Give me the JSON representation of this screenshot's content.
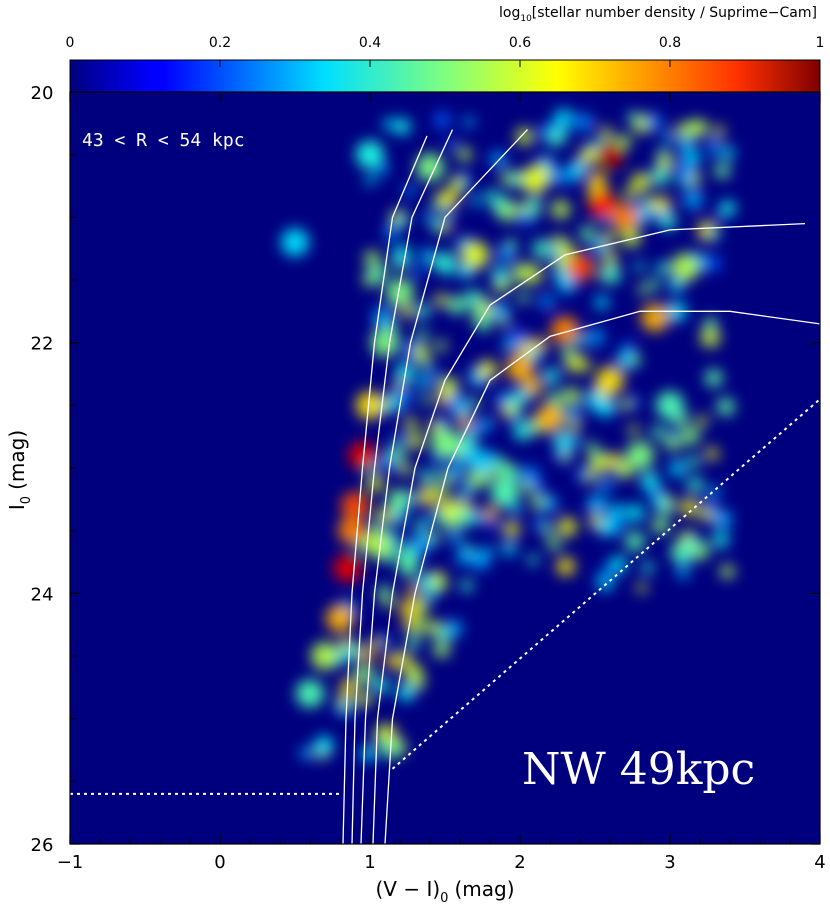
{
  "chart_data": {
    "type": "heatmap",
    "title": "",
    "xlabel": "(V − I)",
    "xlabel_sub": "0",
    "xlabel_unit": "(mag)",
    "ylabel": "I",
    "ylabel_sub": "0",
    "ylabel_unit": "(mag)",
    "xlim": [
      -1,
      4
    ],
    "ylim": [
      26,
      20
    ],
    "x_ticks": [
      -1,
      0,
      1,
      2,
      3,
      4
    ],
    "x_tick_labels": [
      "−1",
      "0",
      "1",
      "2",
      "3",
      "4"
    ],
    "y_ticks": [
      20,
      22,
      24,
      26
    ],
    "y_tick_labels": [
      "20",
      "22",
      "24",
      "26"
    ],
    "colorbar": {
      "label_prefix": "log",
      "label_sub": "10",
      "label_suffix": "[stellar number density / Suprime−Cam]",
      "range": [
        0,
        1
      ],
      "ticks": [
        0,
        0.2,
        0.4,
        0.6,
        0.8,
        1
      ],
      "tick_labels": [
        "0",
        "0.2",
        "0.4",
        "0.6",
        "0.8",
        "1"
      ],
      "colormap": "jet"
    },
    "annotations": {
      "radius_range": "43 < R < 54 kpc",
      "field_label": "NW 49kpc"
    },
    "density_clumps": [
      {
        "x": 0.95,
        "y": 22.9,
        "v": 0.9
      },
      {
        "x": 0.9,
        "y": 23.3,
        "v": 0.8
      },
      {
        "x": 0.85,
        "y": 23.8,
        "v": 0.9
      },
      {
        "x": 0.88,
        "y": 23.5,
        "v": 0.75
      },
      {
        "x": 1.0,
        "y": 22.5,
        "v": 0.65
      },
      {
        "x": 0.8,
        "y": 24.2,
        "v": 0.7
      },
      {
        "x": 0.7,
        "y": 24.5,
        "v": 0.55
      },
      {
        "x": 0.6,
        "y": 24.8,
        "v": 0.45
      },
      {
        "x": 1.05,
        "y": 23.6,
        "v": 0.55
      },
      {
        "x": 1.1,
        "y": 22.0,
        "v": 0.5
      },
      {
        "x": 1.2,
        "y": 21.6,
        "v": 0.5
      },
      {
        "x": 2.6,
        "y": 20.5,
        "v": 0.95
      },
      {
        "x": 2.55,
        "y": 20.9,
        "v": 0.85
      },
      {
        "x": 2.4,
        "y": 21.4,
        "v": 0.8
      },
      {
        "x": 2.7,
        "y": 21.0,
        "v": 0.75
      },
      {
        "x": 2.3,
        "y": 21.9,
        "v": 0.75
      },
      {
        "x": 2.9,
        "y": 21.8,
        "v": 0.7
      },
      {
        "x": 2.0,
        "y": 22.2,
        "v": 0.7
      },
      {
        "x": 2.2,
        "y": 22.6,
        "v": 0.7
      },
      {
        "x": 2.6,
        "y": 22.3,
        "v": 0.65
      },
      {
        "x": 1.7,
        "y": 21.3,
        "v": 0.6
      },
      {
        "x": 2.1,
        "y": 20.7,
        "v": 0.6
      },
      {
        "x": 3.1,
        "y": 21.4,
        "v": 0.55
      },
      {
        "x": 1.5,
        "y": 22.8,
        "v": 0.5
      },
      {
        "x": 2.8,
        "y": 22.9,
        "v": 0.5
      },
      {
        "x": 1.9,
        "y": 23.2,
        "v": 0.45
      },
      {
        "x": 3.0,
        "y": 22.5,
        "v": 0.45
      },
      {
        "x": 1.4,
        "y": 20.6,
        "v": 0.5
      },
      {
        "x": 1.0,
        "y": 20.5,
        "v": 0.4
      },
      {
        "x": 0.5,
        "y": 21.2,
        "v": 0.35
      }
    ],
    "curves": [
      {
        "style": "solid",
        "points": [
          [
            0.82,
            26.0
          ],
          [
            0.84,
            25.0
          ],
          [
            0.88,
            24.0
          ],
          [
            0.95,
            23.0
          ],
          [
            1.03,
            22.0
          ],
          [
            1.15,
            21.0
          ],
          [
            1.38,
            20.35
          ]
        ]
      },
      {
        "style": "solid",
        "points": [
          [
            0.88,
            26.0
          ],
          [
            0.9,
            25.0
          ],
          [
            0.95,
            24.0
          ],
          [
            1.03,
            23.0
          ],
          [
            1.13,
            22.0
          ],
          [
            1.28,
            21.0
          ],
          [
            1.55,
            20.3
          ]
        ]
      },
      {
        "style": "solid",
        "points": [
          [
            0.94,
            26.0
          ],
          [
            0.97,
            25.0
          ],
          [
            1.03,
            24.0
          ],
          [
            1.13,
            23.0
          ],
          [
            1.27,
            22.0
          ],
          [
            1.5,
            21.0
          ],
          [
            2.05,
            20.3
          ]
        ]
      },
      {
        "style": "solid",
        "points": [
          [
            1.02,
            26.0
          ],
          [
            1.05,
            25.0
          ],
          [
            1.15,
            24.0
          ],
          [
            1.3,
            23.0
          ],
          [
            1.5,
            22.3
          ],
          [
            1.8,
            21.7
          ],
          [
            2.3,
            21.3
          ],
          [
            3.0,
            21.1
          ],
          [
            3.9,
            21.05
          ]
        ]
      },
      {
        "style": "solid",
        "points": [
          [
            1.1,
            26.0
          ],
          [
            1.15,
            25.0
          ],
          [
            1.3,
            24.0
          ],
          [
            1.52,
            23.0
          ],
          [
            1.8,
            22.3
          ],
          [
            2.2,
            21.95
          ],
          [
            2.8,
            21.75
          ],
          [
            3.4,
            21.75
          ],
          [
            4.0,
            21.85
          ]
        ]
      },
      {
        "style": "dotted",
        "points": [
          [
            -1.0,
            25.6
          ],
          [
            0.8,
            25.6
          ]
        ]
      },
      {
        "style": "dotted",
        "points": [
          [
            1.15,
            25.4
          ],
          [
            4.0,
            22.45
          ]
        ]
      }
    ]
  }
}
